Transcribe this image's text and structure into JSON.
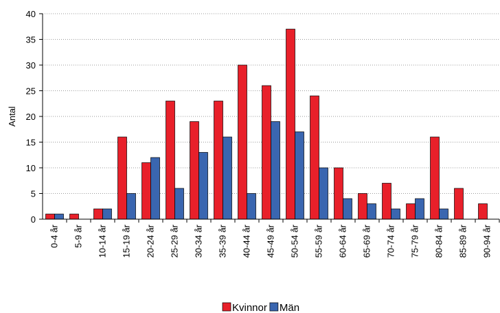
{
  "chart_data": {
    "type": "bar",
    "y_label": "Antal",
    "categories": [
      "0-4 år",
      "5-9 år",
      "10-14 år",
      "15-19 år",
      "20-24 år",
      "25-29 år",
      "30-34 år",
      "35-39 år",
      "40-44 år",
      "45-49 år",
      "50-54 år",
      "55-59 år",
      "60-64 år",
      "65-69 år",
      "70-74 år",
      "75-79 år",
      "80-84 år",
      "85-89 år",
      "90-94 år"
    ],
    "series": [
      {
        "name": "Kvinnor",
        "color": "#e8202a",
        "values": [
          1,
          1,
          2,
          16,
          11,
          23,
          19,
          23,
          30,
          26,
          37,
          24,
          10,
          5,
          7,
          3,
          16,
          6,
          3
        ]
      },
      {
        "name": "Män",
        "color": "#3a66b0",
        "values": [
          1,
          0,
          2,
          5,
          12,
          6,
          13,
          16,
          5,
          19,
          17,
          10,
          4,
          3,
          2,
          4,
          2,
          0,
          0
        ]
      }
    ],
    "ylim": [
      0,
      40
    ],
    "yticks": [
      0,
      5,
      10,
      15,
      20,
      25,
      30,
      35,
      40
    ],
    "grid": true,
    "legend": "bottom"
  }
}
